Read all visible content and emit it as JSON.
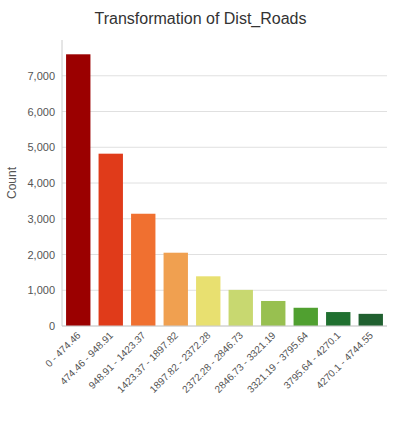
{
  "chart_data": {
    "type": "bar",
    "title": "Transformation of Dist_Roads",
    "ylabel": "Count",
    "categories": [
      "0 - 474.46",
      "474.46 - 948.91",
      "948.91 - 1423.37",
      "1423.37 - 1897.82",
      "1897.82 - 2372.28",
      "2372.28 - 2846.73",
      "2846.73 - 3321.19",
      "3321.19 - 3795.64",
      "3795.64 - 4270.1",
      "4270.1 - 4744.55"
    ],
    "values": [
      7600,
      4820,
      3140,
      2050,
      1390,
      1010,
      700,
      510,
      390,
      340
    ],
    "colors": [
      "#9B0000",
      "#E03B1A",
      "#F07030",
      "#F0A050",
      "#E8E070",
      "#C8D870",
      "#98C050",
      "#50A030",
      "#207030",
      "#206030"
    ],
    "ylim": [
      0,
      8000
    ],
    "yticks": [
      0,
      {
        "value": 1000,
        "label": "1,000"
      },
      {
        "value": 2000,
        "label": "2,000"
      },
      {
        "value": 3000,
        "label": "3,000"
      },
      {
        "value": 4000,
        "label": "4,000"
      },
      {
        "value": 5000,
        "label": "5,000"
      },
      {
        "value": 6000,
        "label": "6,000"
      },
      {
        "value": 7000,
        "label": "7,000"
      }
    ],
    "grid": true
  }
}
